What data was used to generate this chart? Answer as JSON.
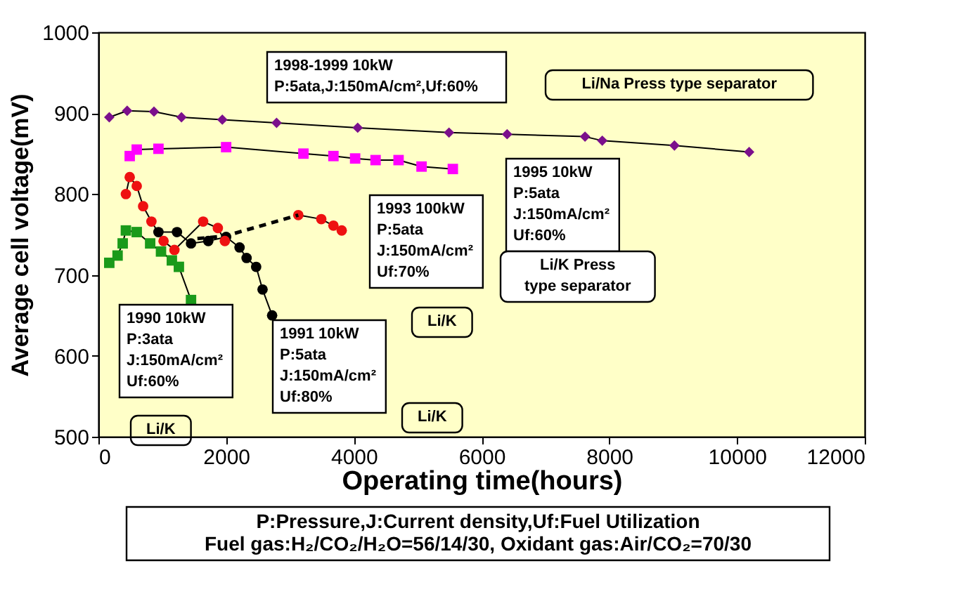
{
  "chart_data": {
    "type": "line",
    "xlabel": "Operating time(hours)",
    "ylabel": "Average cell voltage(mV)",
    "xlim": [
      0,
      12000
    ],
    "xticks": [
      0,
      2000,
      4000,
      6000,
      8000,
      10000,
      12000
    ],
    "ylim": [
      500,
      1000
    ],
    "yticks": [
      500,
      600,
      700,
      800,
      900,
      1000
    ],
    "grid": false,
    "series": [
      {
        "color": "#7b0f8c",
        "marker": "diamond",
        "x": [
          170,
          450,
          870,
          1300,
          1940,
          2790,
          4060,
          5490,
          6400,
          7620,
          7890,
          9020,
          10190
        ],
        "values": [
          895,
          903,
          902,
          895,
          892,
          888,
          882,
          876,
          874,
          871,
          866,
          860,
          852
        ]
      },
      {
        "color": "#ff00ff",
        "marker": "square",
        "x": [
          490,
          600,
          940,
          2000,
          3210,
          3680,
          4020,
          4340,
          4700,
          5060,
          5550
        ],
        "values": [
          847,
          855,
          856,
          858,
          850,
          847,
          844,
          842,
          842,
          834,
          831
        ]
      },
      {
        "color": "#ee1111",
        "marker": "circle",
        "x": [
          3130,
          3490,
          3680,
          3810
        ],
        "values": [
          774,
          769,
          761,
          755
        ]
      },
      {
        "type": "line",
        "color": "#000000",
        "marker": "none",
        "line_style": "dashed",
        "x": [
          1550,
          1980,
          3130
        ],
        "values": [
          745,
          748,
          774
        ]
      },
      {
        "color": "#000000",
        "marker": "circle",
        "x": [
          940,
          1230,
          1450,
          1720,
          2000,
          2210,
          2320,
          2470,
          2570,
          2720
        ],
        "values": [
          753,
          753,
          739,
          742,
          747,
          734,
          721,
          710,
          682,
          650
        ]
      },
      {
        "color": "#ee1111",
        "marker": "circle",
        "x": [
          430,
          490,
          600,
          700,
          830,
          1020,
          1190,
          1640,
          1870,
          1980
        ],
        "values": [
          800,
          821,
          810,
          785,
          766,
          742,
          731,
          766,
          758,
          742
        ]
      },
      {
        "color": "#1a9a1a",
        "marker": "square",
        "x": [
          170,
          300,
          380,
          430,
          600,
          810,
          980,
          1150,
          1260,
          1450
        ],
        "values": [
          715,
          724,
          739,
          755,
          753,
          739,
          729,
          718,
          710,
          669
        ]
      }
    ],
    "annotations": [
      "1998-1999 10kW\nP:5ata,J:150mA/cm²,Uf:60%",
      "Li/Na Press type separator",
      "1995 10kW\nP:5ata\nJ:150mA/cm²\nUf:60%",
      "Li/K Press\ntype separator",
      "1993 100kW\nP:5ata\nJ:150mA/cm²\nUf:70%",
      "Li/K",
      "1990 10kW\nP:3ata\nJ:150mA/cm²\nUf:60%",
      "1991 10kW\nP:5ata\nJ:150mA/cm²\nUf:80%",
      "Li/K",
      "Li/K",
      "P:Pressure,J:Current density,Uf:Fuel Utilization\nFuel gas:H₂/CO₂/H₂O=56/14/30, Oxidant gas:Air/CO₂=70/30"
    ]
  }
}
